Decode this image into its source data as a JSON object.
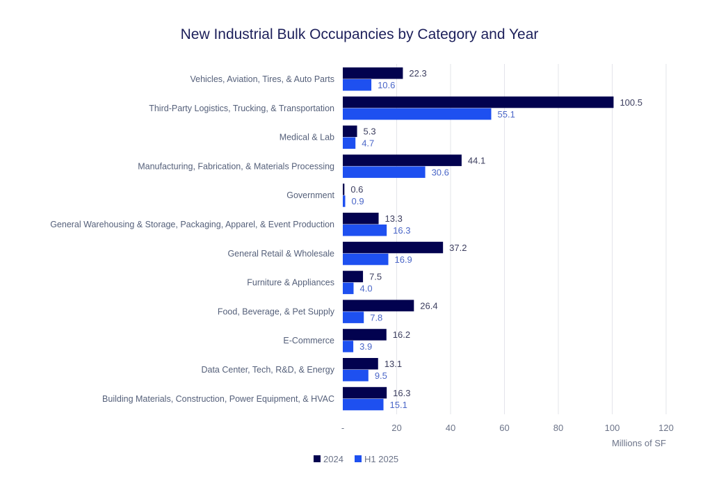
{
  "chart_data": {
    "type": "bar",
    "orientation": "horizontal",
    "title": "New Industrial Bulk Occupancies by Category and Year",
    "xlabel": "Millions of SF",
    "ylabel": "",
    "xlim": [
      0,
      120
    ],
    "xticks": [
      0,
      20,
      40,
      60,
      80,
      100,
      120
    ],
    "xtick_labels": [
      "-",
      "20",
      "40",
      "60",
      "80",
      "100",
      "120"
    ],
    "grid": "vertical",
    "legend_position": "bottom-left",
    "categories": [
      "Vehicles, Aviation, Tires, & Auto Parts",
      "Third-Party Logistics, Trucking, & Transportation",
      "Medical & Lab",
      "Manufacturing, Fabrication, & Materials Processing",
      "Government",
      "General Warehousing & Storage, Packaging, Apparel, & Event Production",
      "General Retail & Wholesale",
      "Furniture & Appliances",
      "Food, Beverage, & Pet Supply",
      "E-Commerce",
      "Data Center, Tech, R&D, & Energy",
      "Building Materials, Construction, Power Equipment, & HVAC"
    ],
    "series": [
      {
        "name": "2024",
        "color": "#02024f",
        "label_color": "#3b3d5e",
        "values": [
          22.3,
          100.5,
          5.3,
          44.1,
          0.6,
          13.3,
          37.2,
          7.5,
          26.4,
          16.2,
          13.1,
          16.3
        ],
        "labels": [
          "22.3",
          "100.5",
          "5.3",
          "44.1",
          "0.6",
          "13.3",
          "37.2",
          "7.5",
          "26.4",
          "16.2",
          "13.1",
          "16.3"
        ]
      },
      {
        "name": "H1 2025",
        "color": "#1e50f0",
        "label_color": "#4a66c8",
        "values": [
          10.6,
          55.1,
          4.7,
          30.6,
          0.9,
          16.3,
          16.9,
          4.0,
          7.8,
          3.9,
          9.5,
          15.1
        ],
        "labels": [
          "10.6",
          "55.1",
          "4.7",
          "30.6",
          "0.9",
          "16.3",
          "16.9",
          "4.0",
          "7.8",
          "3.9",
          "9.5",
          "15.1"
        ]
      }
    ]
  }
}
